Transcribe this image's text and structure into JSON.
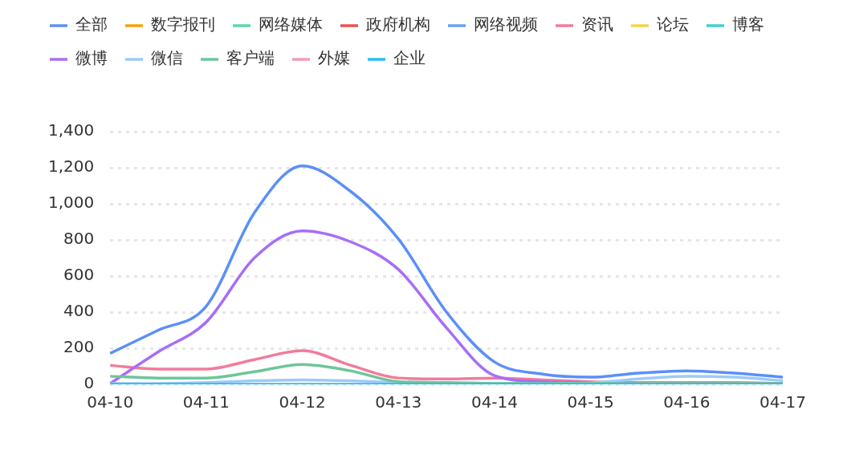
{
  "chart_data": {
    "type": "line",
    "categories": [
      "04-10",
      null,
      "04-11",
      null,
      "04-12",
      null,
      "04-13",
      null,
      "04-14",
      null,
      "04-15",
      null,
      "04-16",
      null,
      "04-17"
    ],
    "series": [
      {
        "name": "全部",
        "color": "#5b8ff9",
        "values": [
          172,
          300,
          433,
          950,
          1210,
          1070,
          805,
          400,
          124,
          57,
          40,
          62,
          75,
          62,
          40
        ]
      },
      {
        "name": "数字报刊",
        "color": "#f6a10a",
        "values": [
          null,
          null,
          null,
          null,
          null,
          null,
          null,
          null,
          null,
          null,
          null,
          null,
          null,
          null,
          null
        ]
      },
      {
        "name": "网络媒体",
        "color": "#5ad8a6",
        "values": [
          null,
          null,
          null,
          null,
          null,
          null,
          null,
          null,
          null,
          null,
          null,
          null,
          null,
          null,
          null
        ]
      },
      {
        "name": "政府机构",
        "color": "#e8534f",
        "values": [
          null,
          null,
          null,
          null,
          null,
          null,
          null,
          null,
          null,
          null,
          null,
          null,
          null,
          null,
          null
        ]
      },
      {
        "name": "网络视频",
        "color": "#6a9ef5",
        "values": [
          null,
          null,
          null,
          null,
          null,
          null,
          null,
          null,
          null,
          null,
          null,
          null,
          null,
          null,
          null
        ]
      },
      {
        "name": "资讯",
        "color": "#f07c9b",
        "values": [
          105,
          85,
          85,
          137,
          187,
          106,
          35,
          30,
          35,
          25,
          15,
          10,
          10,
          10,
          5
        ]
      },
      {
        "name": "论坛",
        "color": "#f6d34a",
        "values": [
          null,
          null,
          null,
          null,
          null,
          null,
          null,
          null,
          null,
          null,
          null,
          null,
          null,
          null,
          null
        ]
      },
      {
        "name": "博客",
        "color": "#3fcfd0",
        "values": [
          null,
          null,
          null,
          null,
          null,
          null,
          null,
          null,
          null,
          null,
          null,
          null,
          null,
          null,
          null
        ]
      },
      {
        "name": "微博",
        "color": "#a76ef5",
        "values": [
          5,
          180,
          345,
          700,
          850,
          790,
          636,
          313,
          48,
          15,
          10,
          5,
          null,
          null,
          null
        ]
      },
      {
        "name": "微信",
        "color": "#9ccaf9",
        "values": [
          5,
          5,
          10,
          20,
          25,
          20,
          10,
          5,
          5,
          5,
          8,
          30,
          45,
          40,
          20
        ]
      },
      {
        "name": "客户端",
        "color": "#6fc59b",
        "values": [
          45,
          35,
          35,
          70,
          110,
          75,
          15,
          10,
          5,
          5,
          5,
          5,
          5,
          5,
          5
        ]
      },
      {
        "name": "外媒",
        "color": "#f59bb5",
        "values": [
          null,
          null,
          null,
          null,
          null,
          null,
          null,
          null,
          null,
          null,
          null,
          null,
          null,
          null,
          null
        ]
      },
      {
        "name": "企业",
        "color": "#2bbcf5",
        "values": [
          0,
          0,
          0,
          0,
          0,
          0,
          0,
          0,
          0,
          0,
          0,
          0,
          0,
          0,
          0
        ]
      }
    ],
    "ylim": [
      0,
      1400
    ],
    "yticks": [
      0,
      200,
      400,
      600,
      800,
      {
        "value": 1000,
        "label": "1,000"
      },
      {
        "value": 1200,
        "label": "1,200"
      },
      {
        "value": 1400,
        "label": "1,400"
      }
    ],
    "grid": "y",
    "legend": "top",
    "marker": "none",
    "line_style": "solid"
  }
}
